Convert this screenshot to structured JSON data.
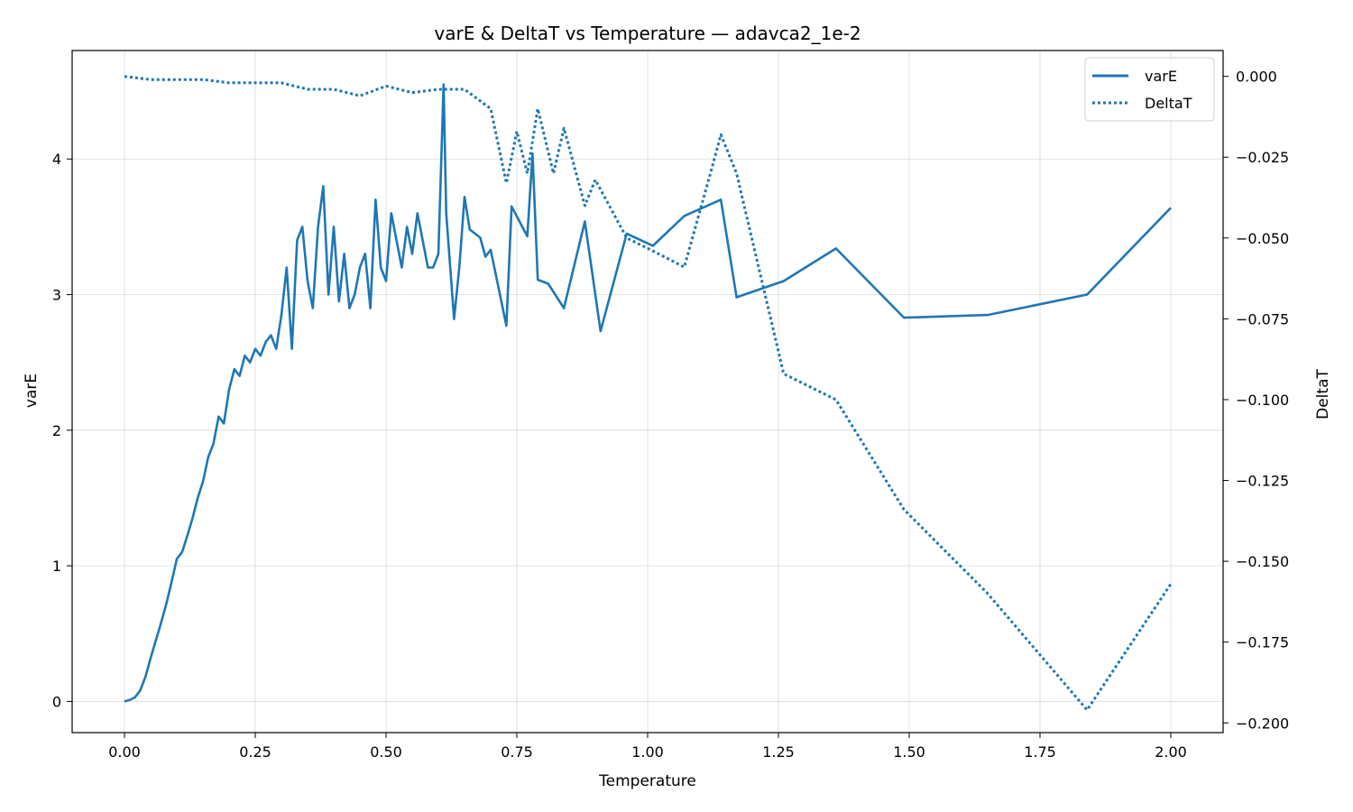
{
  "chart_data": {
    "type": "line",
    "title": "varE & DeltaT vs Temperature — adavca2_1e-2",
    "xlabel": "Temperature",
    "ylabel_left": "varE",
    "ylabel_right": "DeltaT",
    "xlim": [
      -0.1,
      2.1
    ],
    "ylim_left": [
      -0.23,
      4.8
    ],
    "ylim_right": [
      -0.203,
      0.008
    ],
    "x_ticks": [
      0.0,
      0.25,
      0.5,
      0.75,
      1.0,
      1.25,
      1.5,
      1.75,
      2.0
    ],
    "x_tick_labels": [
      "0.00",
      "0.25",
      "0.50",
      "0.75",
      "1.00",
      "1.25",
      "1.50",
      "1.75",
      "2.00"
    ],
    "y_left_ticks": [
      0,
      1,
      2,
      3,
      4
    ],
    "y_left_tick_labels": [
      "0",
      "1",
      "2",
      "3",
      "4"
    ],
    "y_right_ticks": [
      0.0,
      -0.025,
      -0.05,
      -0.075,
      -0.1,
      -0.125,
      -0.15,
      -0.175,
      -0.2
    ],
    "y_right_tick_labels": [
      "0.000",
      "−0.025",
      "−0.050",
      "−0.075",
      "−0.100",
      "−0.125",
      "−0.150",
      "−0.175",
      "−0.200"
    ],
    "grid": true,
    "legend_position": "top-right",
    "color": "#1f77b4",
    "series": [
      {
        "name": "varE",
        "axis": "left",
        "style": "solid",
        "x": [
          0.0,
          0.01,
          0.02,
          0.03,
          0.04,
          0.05,
          0.06,
          0.07,
          0.08,
          0.09,
          0.1,
          0.11,
          0.12,
          0.13,
          0.14,
          0.15,
          0.16,
          0.17,
          0.18,
          0.19,
          0.2,
          0.21,
          0.22,
          0.23,
          0.24,
          0.25,
          0.26,
          0.27,
          0.28,
          0.29,
          0.3,
          0.31,
          0.32,
          0.33,
          0.34,
          0.35,
          0.36,
          0.37,
          0.38,
          0.39,
          0.4,
          0.41,
          0.42,
          0.43,
          0.44,
          0.45,
          0.46,
          0.47,
          0.48,
          0.49,
          0.5,
          0.51,
          0.52,
          0.53,
          0.54,
          0.55,
          0.56,
          0.57,
          0.58,
          0.59,
          0.6,
          0.61,
          0.615,
          0.63,
          0.64,
          0.65,
          0.66,
          0.68,
          0.69,
          0.7,
          0.73,
          0.74,
          0.77,
          0.78,
          0.79,
          0.81,
          0.84,
          0.88,
          0.91,
          0.96,
          1.01,
          1.07,
          1.14,
          1.17,
          1.26,
          1.36,
          1.49,
          1.65,
          1.84,
          2.0
        ],
        "y": [
          0.0,
          0.01,
          0.03,
          0.08,
          0.18,
          0.32,
          0.45,
          0.58,
          0.72,
          0.88,
          1.05,
          1.1,
          1.22,
          1.35,
          1.5,
          1.62,
          1.8,
          1.9,
          2.1,
          2.05,
          2.3,
          2.45,
          2.4,
          2.55,
          2.5,
          2.6,
          2.55,
          2.65,
          2.7,
          2.6,
          2.85,
          3.2,
          2.6,
          3.4,
          3.5,
          3.1,
          2.9,
          3.5,
          3.8,
          3.0,
          3.5,
          2.95,
          3.3,
          2.9,
          3.0,
          3.2,
          3.3,
          2.9,
          3.7,
          3.2,
          3.1,
          3.6,
          3.4,
          3.2,
          3.5,
          3.3,
          3.6,
          3.4,
          3.2,
          3.2,
          3.3,
          4.55,
          3.6,
          2.82,
          3.2,
          3.72,
          3.48,
          3.42,
          3.28,
          3.33,
          2.77,
          3.65,
          3.43,
          4.04,
          3.11,
          3.08,
          2.9,
          3.54,
          2.73,
          3.45,
          3.36,
          3.58,
          3.7,
          2.98,
          3.1,
          3.34,
          2.83,
          2.85,
          3.0,
          3.64
        ]
      },
      {
        "name": "DeltaT",
        "axis": "right",
        "style": "dotted",
        "x": [
          0.0,
          0.05,
          0.1,
          0.15,
          0.2,
          0.25,
          0.3,
          0.35,
          0.4,
          0.45,
          0.5,
          0.55,
          0.6,
          0.65,
          0.7,
          0.73,
          0.75,
          0.77,
          0.79,
          0.82,
          0.84,
          0.88,
          0.9,
          0.96,
          1.01,
          1.07,
          1.12,
          1.14,
          1.17,
          1.26,
          1.36,
          1.49,
          1.65,
          1.84,
          2.0
        ],
        "y": [
          0.0,
          -0.001,
          -0.001,
          -0.001,
          -0.002,
          -0.002,
          -0.002,
          -0.004,
          -0.004,
          -0.006,
          -0.003,
          -0.005,
          -0.004,
          -0.004,
          -0.01,
          -0.033,
          -0.017,
          -0.03,
          -0.01,
          -0.03,
          -0.016,
          -0.04,
          -0.032,
          -0.05,
          -0.054,
          -0.059,
          -0.03,
          -0.018,
          -0.03,
          -0.092,
          -0.1,
          -0.134,
          -0.16,
          -0.196,
          -0.157
        ]
      }
    ]
  }
}
